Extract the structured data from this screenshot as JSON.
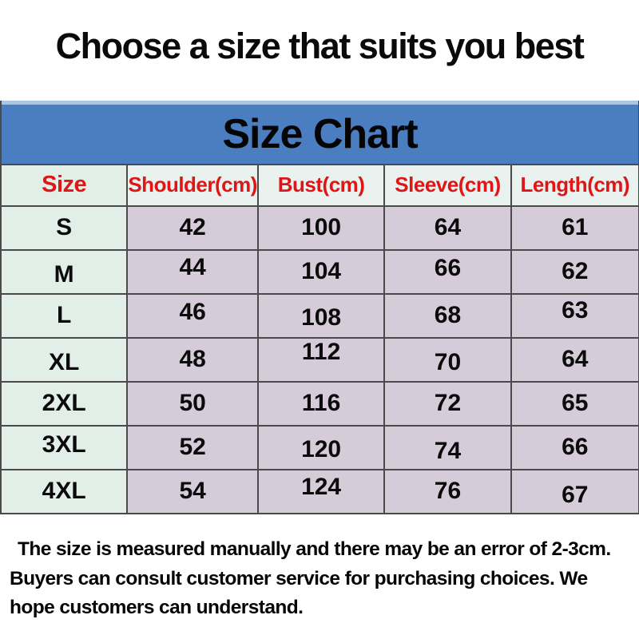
{
  "page_title": "Choose a size that suits you best",
  "size_chart": {
    "title": "Size Chart",
    "columns": [
      "Size",
      "Shoulder(cm)",
      "Bust(cm)",
      "Sleeve(cm)",
      "Length(cm)"
    ],
    "rows": [
      [
        "S",
        "42",
        "100",
        "64",
        "61"
      ],
      [
        "M",
        "44",
        "104",
        "66",
        "62"
      ],
      [
        "L",
        "46",
        "108",
        "68",
        "63"
      ],
      [
        "XL",
        "48",
        "112",
        "70",
        "64"
      ],
      [
        "2XL",
        "50",
        "116",
        "72",
        "65"
      ],
      [
        "3XL",
        "52",
        "120",
        "74",
        "66"
      ],
      [
        "4XL",
        "54",
        "124",
        "76",
        "67"
      ]
    ]
  },
  "footer_note": "The size is measured manually and there may be an error of 2-3cm. Buyers can consult customer service for purchasing choices. We hope customers can understand.",
  "colors": {
    "header_band_bg": "#4b7ec1",
    "header_band_topline": "#aac6e4",
    "column_header_bg": "#e9f2ee",
    "column_header_text": "#e01616",
    "size_column_bg": "#e2efe9",
    "value_cell_bg": "#d6cbd8",
    "grid_border": "#4a4a4a",
    "text": "#000000"
  }
}
